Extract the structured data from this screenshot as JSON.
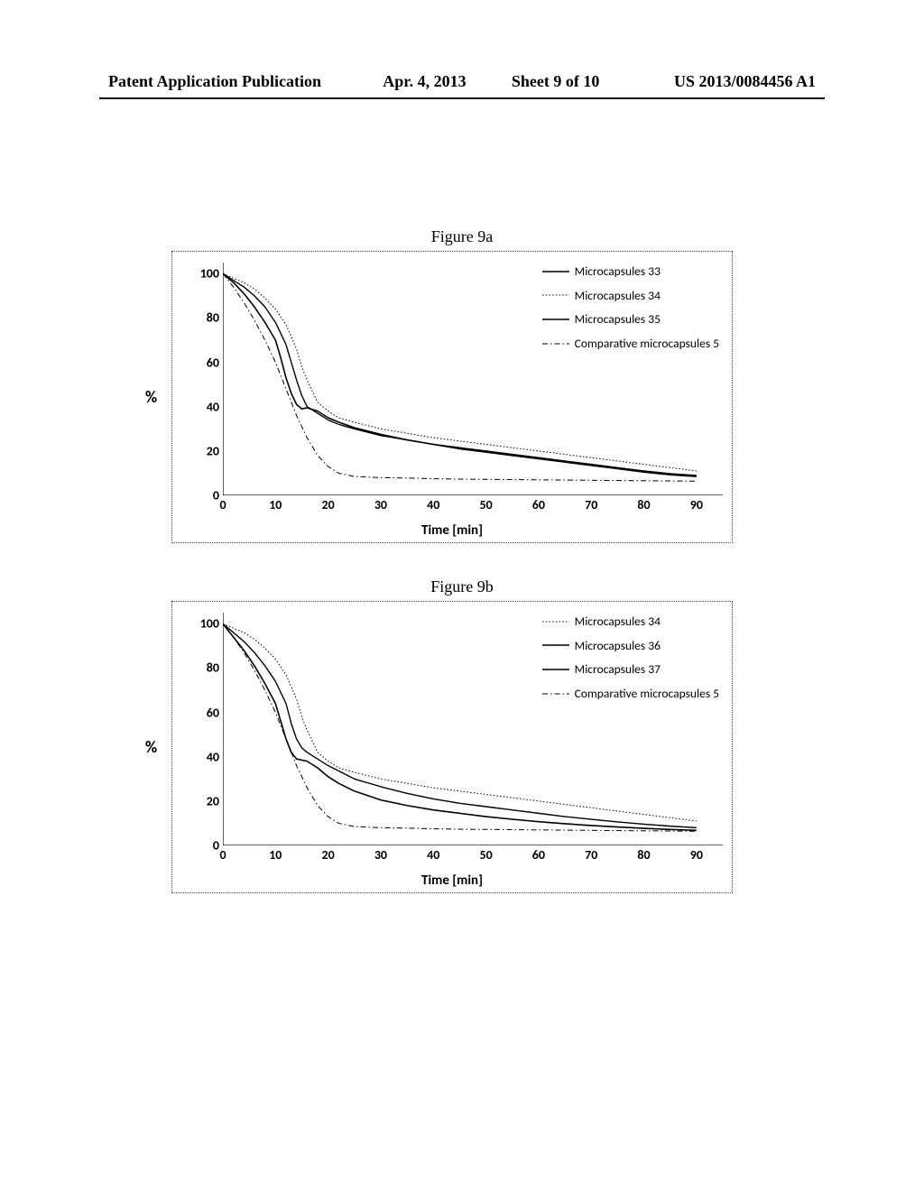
{
  "header": {
    "left": "Patent Application Publication",
    "date": "Apr. 4, 2013",
    "sheet": "Sheet 9 of 10",
    "right": "US 2013/0084456 A1"
  },
  "figA": {
    "title": "Figure 9a",
    "ylabel": "%",
    "xlabel": "Time [min]",
    "xlim": [
      0,
      95
    ],
    "ylim": [
      0,
      105
    ],
    "xticks": [
      0,
      10,
      20,
      30,
      40,
      50,
      60,
      70,
      80,
      90
    ],
    "yticks": [
      0,
      20,
      40,
      60,
      80,
      100
    ],
    "axis_color": "#000000",
    "tick_len": 4,
    "background": "#ffffff",
    "series": [
      {
        "name": "Microcapsules 33",
        "legend": "Microcapsules 33",
        "color": "#000000",
        "width": 1.4,
        "dash": "",
        "data": [
          [
            0,
            100
          ],
          [
            2,
            97
          ],
          [
            4,
            94
          ],
          [
            6,
            90
          ],
          [
            8,
            85
          ],
          [
            10,
            78
          ],
          [
            12,
            68
          ],
          [
            13,
            60
          ],
          [
            14,
            52
          ],
          [
            15,
            45
          ],
          [
            16,
            40
          ],
          [
            18,
            37
          ],
          [
            20,
            34
          ],
          [
            22,
            32
          ],
          [
            25,
            30
          ],
          [
            30,
            27
          ],
          [
            35,
            25
          ],
          [
            40,
            23
          ],
          [
            45,
            21.5
          ],
          [
            50,
            20
          ],
          [
            55,
            18.5
          ],
          [
            60,
            17
          ],
          [
            65,
            15.5
          ],
          [
            70,
            14
          ],
          [
            75,
            12.5
          ],
          [
            80,
            11
          ],
          [
            85,
            9.8
          ],
          [
            90,
            9
          ]
        ]
      },
      {
        "name": "Microcapsules 34",
        "legend": "Microcapsules 34",
        "color": "#000000",
        "width": 1.0,
        "dash": "1.5,2.2",
        "data": [
          [
            0,
            100
          ],
          [
            2,
            98
          ],
          [
            4,
            96
          ],
          [
            6,
            93
          ],
          [
            8,
            89
          ],
          [
            10,
            84
          ],
          [
            12,
            77
          ],
          [
            14,
            66
          ],
          [
            15,
            58
          ],
          [
            16,
            52
          ],
          [
            17,
            47
          ],
          [
            18,
            42
          ],
          [
            20,
            38
          ],
          [
            22,
            35
          ],
          [
            25,
            33
          ],
          [
            30,
            30
          ],
          [
            35,
            28
          ],
          [
            40,
            26
          ],
          [
            45,
            24.5
          ],
          [
            50,
            23
          ],
          [
            55,
            21.5
          ],
          [
            60,
            20
          ],
          [
            65,
            18.5
          ],
          [
            70,
            17
          ],
          [
            75,
            15.5
          ],
          [
            80,
            14
          ],
          [
            85,
            12.5
          ],
          [
            90,
            11
          ]
        ]
      },
      {
        "name": "Microcapsules 35",
        "legend": "Microcapsules 35",
        "color": "#000000",
        "width": 1.6,
        "dash": "",
        "data": [
          [
            0,
            100
          ],
          [
            2,
            96
          ],
          [
            4,
            91
          ],
          [
            6,
            85
          ],
          [
            8,
            78
          ],
          [
            10,
            70
          ],
          [
            11,
            62
          ],
          [
            12,
            53
          ],
          [
            13,
            46
          ],
          [
            14,
            41
          ],
          [
            15,
            39
          ],
          [
            16,
            39.5
          ],
          [
            18,
            38
          ],
          [
            20,
            35
          ],
          [
            22,
            33
          ],
          [
            25,
            30.5
          ],
          [
            30,
            27.5
          ],
          [
            35,
            25
          ],
          [
            40,
            23
          ],
          [
            45,
            21
          ],
          [
            50,
            19.5
          ],
          [
            55,
            18
          ],
          [
            60,
            16.5
          ],
          [
            65,
            15
          ],
          [
            70,
            13.5
          ],
          [
            75,
            12
          ],
          [
            80,
            10.5
          ],
          [
            85,
            9.3
          ],
          [
            90,
            8.5
          ]
        ]
      },
      {
        "name": "Comparative microcapsules 5",
        "legend": "Comparative microcapsules 5",
        "color": "#000000",
        "width": 1.0,
        "dash": "6,3,1.5,3",
        "data": [
          [
            0,
            100
          ],
          [
            2,
            94
          ],
          [
            4,
            87
          ],
          [
            6,
            79
          ],
          [
            8,
            70
          ],
          [
            10,
            60
          ],
          [
            12,
            48
          ],
          [
            14,
            36
          ],
          [
            16,
            26
          ],
          [
            18,
            18
          ],
          [
            20,
            13
          ],
          [
            22,
            10
          ],
          [
            25,
            8.5
          ],
          [
            30,
            8
          ],
          [
            35,
            7.8
          ],
          [
            40,
            7.5
          ],
          [
            45,
            7.3
          ],
          [
            50,
            7.2
          ],
          [
            55,
            7.1
          ],
          [
            60,
            7
          ],
          [
            65,
            6.9
          ],
          [
            70,
            6.8
          ],
          [
            75,
            6.7
          ],
          [
            80,
            6.6
          ],
          [
            85,
            6.5
          ],
          [
            90,
            6.4
          ]
        ]
      }
    ]
  },
  "figB": {
    "title": "Figure 9b",
    "ylabel": "%",
    "xlabel": "Time [min]",
    "xlim": [
      0,
      95
    ],
    "ylim": [
      0,
      105
    ],
    "xticks": [
      0,
      10,
      20,
      30,
      40,
      50,
      60,
      70,
      80,
      90
    ],
    "yticks": [
      0,
      20,
      40,
      60,
      80,
      100
    ],
    "axis_color": "#000000",
    "tick_len": 4,
    "background": "#ffffff",
    "series": [
      {
        "name": "Microcapsules 34",
        "legend": "Microcapsules 34",
        "color": "#000000",
        "width": 1.0,
        "dash": "1.5,2.2",
        "data": [
          [
            0,
            100
          ],
          [
            2,
            98
          ],
          [
            4,
            96
          ],
          [
            6,
            93
          ],
          [
            8,
            89
          ],
          [
            10,
            84
          ],
          [
            12,
            77
          ],
          [
            14,
            66
          ],
          [
            15,
            58
          ],
          [
            16,
            52
          ],
          [
            17,
            47
          ],
          [
            18,
            42
          ],
          [
            20,
            38
          ],
          [
            22,
            35
          ],
          [
            25,
            33
          ],
          [
            30,
            30
          ],
          [
            35,
            28
          ],
          [
            40,
            26
          ],
          [
            45,
            24.5
          ],
          [
            50,
            23
          ],
          [
            55,
            21.5
          ],
          [
            60,
            20
          ],
          [
            65,
            18.5
          ],
          [
            70,
            17
          ],
          [
            75,
            15.5
          ],
          [
            80,
            14
          ],
          [
            85,
            12.5
          ],
          [
            90,
            11
          ]
        ]
      },
      {
        "name": "Microcapsules 36",
        "legend": "Microcapsules 36",
        "color": "#000000",
        "width": 1.4,
        "dash": "",
        "data": [
          [
            0,
            100
          ],
          [
            2,
            96
          ],
          [
            4,
            92
          ],
          [
            6,
            87
          ],
          [
            8,
            81
          ],
          [
            10,
            74
          ],
          [
            12,
            64
          ],
          [
            13,
            55
          ],
          [
            14,
            48
          ],
          [
            15,
            44
          ],
          [
            16,
            42
          ],
          [
            18,
            39
          ],
          [
            20,
            36
          ],
          [
            25,
            30
          ],
          [
            30,
            26.5
          ],
          [
            35,
            23.5
          ],
          [
            40,
            21
          ],
          [
            45,
            19
          ],
          [
            50,
            17.5
          ],
          [
            55,
            16
          ],
          [
            60,
            14.5
          ],
          [
            65,
            13
          ],
          [
            70,
            11.8
          ],
          [
            75,
            10.6
          ],
          [
            80,
            9.6
          ],
          [
            85,
            8.7
          ],
          [
            90,
            8
          ]
        ]
      },
      {
        "name": "Microcapsules 37",
        "legend": "Microcapsules 37",
        "color": "#000000",
        "width": 1.6,
        "dash": "",
        "data": [
          [
            0,
            100
          ],
          [
            2,
            94
          ],
          [
            4,
            88
          ],
          [
            6,
            81
          ],
          [
            8,
            73
          ],
          [
            10,
            64
          ],
          [
            11,
            56
          ],
          [
            12,
            48
          ],
          [
            13,
            42
          ],
          [
            14,
            39
          ],
          [
            15,
            38.5
          ],
          [
            16,
            38
          ],
          [
            18,
            35
          ],
          [
            20,
            31
          ],
          [
            22,
            28
          ],
          [
            25,
            24.5
          ],
          [
            30,
            20.5
          ],
          [
            35,
            18
          ],
          [
            40,
            16
          ],
          [
            45,
            14.5
          ],
          [
            50,
            13
          ],
          [
            55,
            11.8
          ],
          [
            60,
            10.7
          ],
          [
            65,
            9.8
          ],
          [
            70,
            9
          ],
          [
            75,
            8.3
          ],
          [
            80,
            7.7
          ],
          [
            85,
            7.2
          ],
          [
            90,
            6.8
          ]
        ]
      },
      {
        "name": "Comparative microcapsules 5",
        "legend": "Comparative microcapsules 5",
        "color": "#000000",
        "width": 1.0,
        "dash": "6,3,1.5,3",
        "data": [
          [
            0,
            100
          ],
          [
            2,
            94
          ],
          [
            4,
            87
          ],
          [
            6,
            79
          ],
          [
            8,
            70
          ],
          [
            10,
            60
          ],
          [
            12,
            48
          ],
          [
            14,
            36
          ],
          [
            16,
            26
          ],
          [
            18,
            18
          ],
          [
            20,
            13
          ],
          [
            22,
            10
          ],
          [
            25,
            8.5
          ],
          [
            30,
            8
          ],
          [
            35,
            7.8
          ],
          [
            40,
            7.5
          ],
          [
            45,
            7.3
          ],
          [
            50,
            7.2
          ],
          [
            55,
            7.1
          ],
          [
            60,
            7
          ],
          [
            65,
            6.9
          ],
          [
            70,
            6.8
          ],
          [
            75,
            6.7
          ],
          [
            80,
            6.6
          ],
          [
            85,
            6.5
          ],
          [
            90,
            6.4
          ]
        ]
      }
    ]
  }
}
